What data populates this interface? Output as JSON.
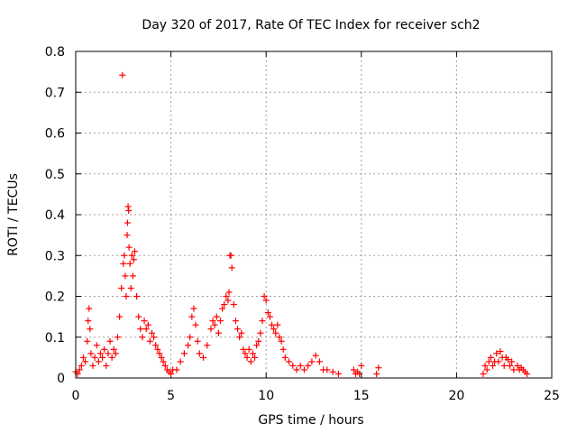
{
  "chart_data": {
    "type": "scatter",
    "title": "Day 320 of 2017, Rate Of TEC Index for receiver sch2",
    "xlabel": "GPS time / hours",
    "ylabel": "ROTI / TECUs",
    "xlim": [
      0,
      25
    ],
    "ylim": [
      0,
      0.8
    ],
    "xticks": [
      0,
      5,
      10,
      15,
      20,
      25
    ],
    "yticks": [
      0,
      0.1,
      0.2,
      0.3,
      0.4,
      0.5,
      0.6,
      0.7,
      0.8
    ],
    "xtick_labels": [
      "0",
      "5",
      "10",
      "15",
      "20",
      "25"
    ],
    "ytick_labels": [
      "0",
      "0.1",
      "0.2",
      "0.3",
      "0.4",
      "0.5",
      "0.6",
      "0.7",
      "0.8"
    ],
    "grid": true,
    "marker": "+",
    "series": [
      {
        "name": "ROTI",
        "color": "#ff0000",
        "points": [
          [
            0.0,
            0.015
          ],
          [
            0.1,
            0.01
          ],
          [
            0.2,
            0.02
          ],
          [
            0.3,
            0.03
          ],
          [
            0.4,
            0.05
          ],
          [
            0.5,
            0.04
          ],
          [
            0.6,
            0.09
          ],
          [
            0.65,
            0.14
          ],
          [
            0.7,
            0.17
          ],
          [
            0.75,
            0.12
          ],
          [
            0.8,
            0.06
          ],
          [
            0.9,
            0.03
          ],
          [
            1.0,
            0.05
          ],
          [
            1.1,
            0.08
          ],
          [
            1.2,
            0.04
          ],
          [
            1.3,
            0.06
          ],
          [
            1.4,
            0.05
          ],
          [
            1.5,
            0.07
          ],
          [
            1.6,
            0.03
          ],
          [
            1.7,
            0.06
          ],
          [
            1.8,
            0.09
          ],
          [
            1.9,
            0.05
          ],
          [
            2.0,
            0.07
          ],
          [
            2.1,
            0.06
          ],
          [
            2.2,
            0.1
          ],
          [
            2.3,
            0.15
          ],
          [
            2.4,
            0.22
          ],
          [
            2.45,
            0.742
          ],
          [
            2.5,
            0.28
          ],
          [
            2.55,
            0.3
          ],
          [
            2.6,
            0.25
          ],
          [
            2.65,
            0.2
          ],
          [
            2.7,
            0.35
          ],
          [
            2.72,
            0.38
          ],
          [
            2.75,
            0.42
          ],
          [
            2.78,
            0.41
          ],
          [
            2.8,
            0.32
          ],
          [
            2.85,
            0.28
          ],
          [
            2.9,
            0.22
          ],
          [
            2.95,
            0.3
          ],
          [
            3.0,
            0.25
          ],
          [
            3.05,
            0.29
          ],
          [
            3.1,
            0.31
          ],
          [
            3.2,
            0.2
          ],
          [
            3.3,
            0.15
          ],
          [
            3.4,
            0.12
          ],
          [
            3.5,
            0.1
          ],
          [
            3.6,
            0.14
          ],
          [
            3.7,
            0.12
          ],
          [
            3.8,
            0.13
          ],
          [
            3.9,
            0.09
          ],
          [
            4.0,
            0.11
          ],
          [
            4.1,
            0.1
          ],
          [
            4.2,
            0.08
          ],
          [
            4.3,
            0.07
          ],
          [
            4.4,
            0.06
          ],
          [
            4.5,
            0.05
          ],
          [
            4.6,
            0.04
          ],
          [
            4.7,
            0.03
          ],
          [
            4.8,
            0.02
          ],
          [
            4.9,
            0.015
          ],
          [
            5.0,
            0.01
          ],
          [
            5.1,
            0.02
          ],
          [
            5.3,
            0.02
          ],
          [
            5.5,
            0.04
          ],
          [
            5.7,
            0.06
          ],
          [
            5.9,
            0.08
          ],
          [
            6.0,
            0.1
          ],
          [
            6.1,
            0.15
          ],
          [
            6.2,
            0.17
          ],
          [
            6.3,
            0.13
          ],
          [
            6.4,
            0.09
          ],
          [
            6.5,
            0.06
          ],
          [
            6.7,
            0.05
          ],
          [
            6.9,
            0.08
          ],
          [
            7.1,
            0.12
          ],
          [
            7.2,
            0.14
          ],
          [
            7.3,
            0.13
          ],
          [
            7.4,
            0.15
          ],
          [
            7.5,
            0.11
          ],
          [
            7.6,
            0.14
          ],
          [
            7.7,
            0.17
          ],
          [
            7.8,
            0.18
          ],
          [
            7.9,
            0.2
          ],
          [
            8.0,
            0.19
          ],
          [
            8.05,
            0.21
          ],
          [
            8.1,
            0.3
          ],
          [
            8.15,
            0.3
          ],
          [
            8.2,
            0.27
          ],
          [
            8.3,
            0.18
          ],
          [
            8.4,
            0.14
          ],
          [
            8.5,
            0.12
          ],
          [
            8.6,
            0.1
          ],
          [
            8.7,
            0.11
          ],
          [
            8.8,
            0.07
          ],
          [
            8.9,
            0.06
          ],
          [
            9.0,
            0.05
          ],
          [
            9.1,
            0.07
          ],
          [
            9.2,
            0.04
          ],
          [
            9.3,
            0.06
          ],
          [
            9.4,
            0.05
          ],
          [
            9.5,
            0.08
          ],
          [
            9.6,
            0.09
          ],
          [
            9.7,
            0.11
          ],
          [
            9.8,
            0.14
          ],
          [
            9.9,
            0.2
          ],
          [
            10.0,
            0.19
          ],
          [
            10.1,
            0.16
          ],
          [
            10.2,
            0.15
          ],
          [
            10.3,
            0.13
          ],
          [
            10.4,
            0.12
          ],
          [
            10.5,
            0.11
          ],
          [
            10.6,
            0.13
          ],
          [
            10.7,
            0.1
          ],
          [
            10.8,
            0.09
          ],
          [
            10.9,
            0.07
          ],
          [
            11.0,
            0.05
          ],
          [
            11.2,
            0.04
          ],
          [
            11.4,
            0.03
          ],
          [
            11.6,
            0.02
          ],
          [
            11.8,
            0.03
          ],
          [
            12.0,
            0.02
          ],
          [
            12.2,
            0.03
          ],
          [
            12.4,
            0.04
          ],
          [
            12.6,
            0.055
          ],
          [
            12.8,
            0.04
          ],
          [
            13.0,
            0.02
          ],
          [
            13.2,
            0.02
          ],
          [
            13.5,
            0.015
          ],
          [
            13.8,
            0.01
          ],
          [
            14.6,
            0.02
          ],
          [
            14.7,
            0.01
          ],
          [
            14.8,
            0.015
          ],
          [
            14.9,
            0.01
          ],
          [
            15.0,
            0.03
          ],
          [
            15.8,
            0.01
          ],
          [
            15.9,
            0.025
          ],
          [
            21.4,
            0.01
          ],
          [
            21.5,
            0.03
          ],
          [
            21.6,
            0.02
          ],
          [
            21.7,
            0.04
          ],
          [
            21.8,
            0.05
          ],
          [
            21.9,
            0.03
          ],
          [
            22.0,
            0.04
          ],
          [
            22.1,
            0.06
          ],
          [
            22.2,
            0.04
          ],
          [
            22.3,
            0.065
          ],
          [
            22.4,
            0.05
          ],
          [
            22.5,
            0.03
          ],
          [
            22.6,
            0.05
          ],
          [
            22.7,
            0.045
          ],
          [
            22.8,
            0.03
          ],
          [
            22.9,
            0.04
          ],
          [
            23.0,
            0.02
          ],
          [
            23.2,
            0.03
          ],
          [
            23.3,
            0.02
          ],
          [
            23.4,
            0.025
          ],
          [
            23.5,
            0.02
          ],
          [
            23.6,
            0.015
          ],
          [
            23.7,
            0.01
          ]
        ]
      }
    ]
  }
}
